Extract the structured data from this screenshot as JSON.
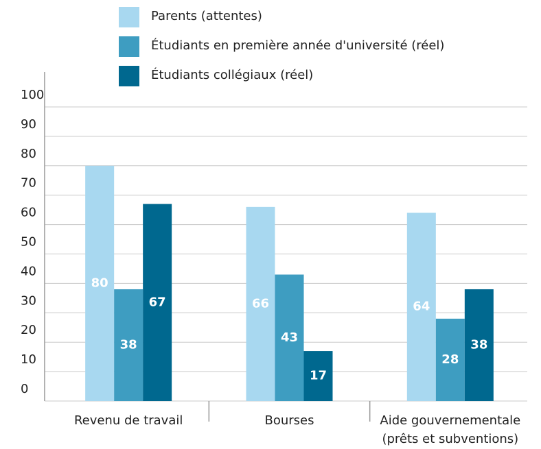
{
  "chart_data": {
    "type": "bar",
    "categories": [
      "Revenu de travail",
      "Bourses",
      "Aide gouvernementale (prêts et subventions)"
    ],
    "series": [
      {
        "name": "Parents (attentes)",
        "color": "#a8d8f0",
        "values": [
          80,
          66,
          64
        ]
      },
      {
        "name": "Étudiants en première année d'université (réel)",
        "color": "#3e9dc1",
        "values": [
          38,
          43,
          28
        ]
      },
      {
        "name": "Étudiants collégiaux (réel)",
        "color": "#00688f",
        "values": [
          67,
          17,
          38
        ]
      }
    ],
    "ylim": [
      0,
      100
    ],
    "yticks": [
      0,
      10,
      20,
      30,
      40,
      50,
      60,
      70,
      80,
      90,
      100
    ],
    "grid": true
  }
}
